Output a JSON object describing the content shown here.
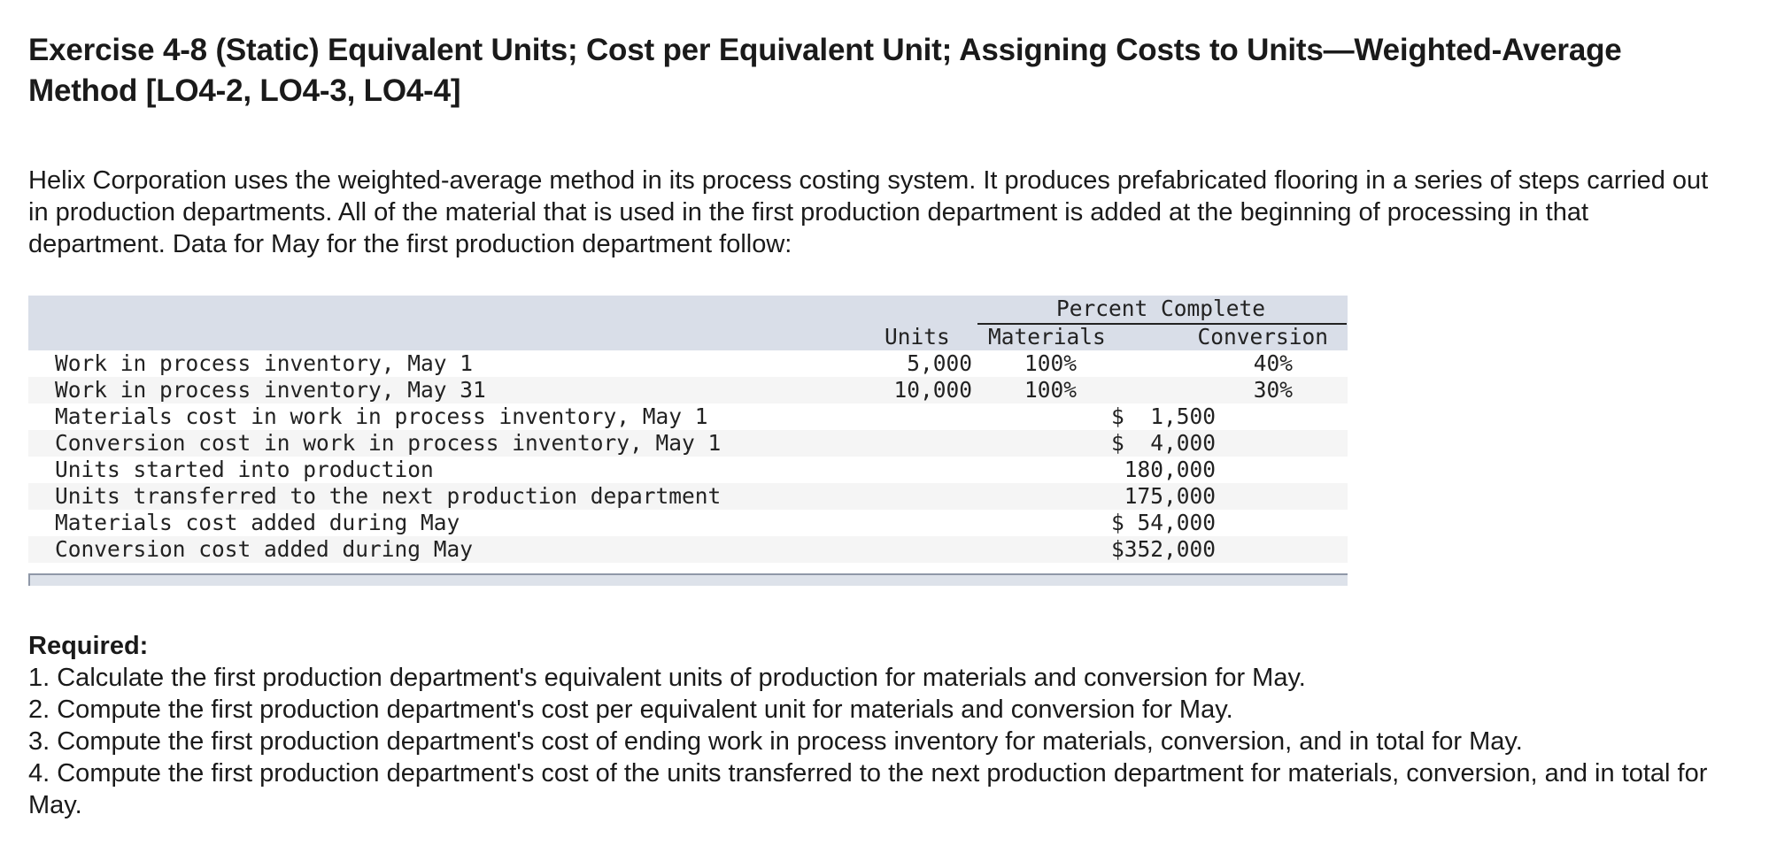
{
  "title": "Exercise 4-8 (Static) Equivalent Units; Cost per Equivalent Unit; Assigning Costs to Units—Weighted-Average Method [LO4-2, LO4-3, LO4-4]",
  "intro": "Helix Corporation uses the weighted-average method in its process costing system. It produces prefabricated flooring in a series of steps carried out in production departments. All of the material that is used in the first production department is added at the beginning of processing in that department. Data for May for the first production department follow:",
  "table": {
    "header": {
      "percent_complete": "Percent Complete",
      "units": "Units",
      "materials": "Materials",
      "conversion": "Conversion"
    },
    "rows": [
      {
        "label": "Work in process inventory, May 1",
        "units": "5,000",
        "materials": "100%",
        "conversion": "40%"
      },
      {
        "label": "Work in process inventory, May 31",
        "units": "10,000",
        "materials": "100%",
        "conversion": "30%"
      },
      {
        "label": "Materials cost in work in process inventory, May 1",
        "amount": "$  1,500"
      },
      {
        "label": "Conversion cost in work in process inventory, May 1",
        "amount": "$  4,000"
      },
      {
        "label": "Units started into production",
        "amount": "180,000"
      },
      {
        "label": "Units transferred to the next production department",
        "amount": "175,000"
      },
      {
        "label": "Materials cost added during May",
        "amount": "$ 54,000"
      },
      {
        "label": "Conversion cost added during May",
        "amount": "$352,000"
      }
    ]
  },
  "required": {
    "title": "Required:",
    "items": [
      "1. Calculate the first production department's equivalent units of production for materials and conversion for May.",
      "2. Compute the first production department's cost per equivalent unit for materials and conversion for May.",
      "3. Compute the first production department's cost of ending work in process inventory for materials, conversion, and in total for May.",
      "4. Compute the first production department's cost of the units transferred to the next production department for materials, conversion, and in total for May."
    ]
  }
}
